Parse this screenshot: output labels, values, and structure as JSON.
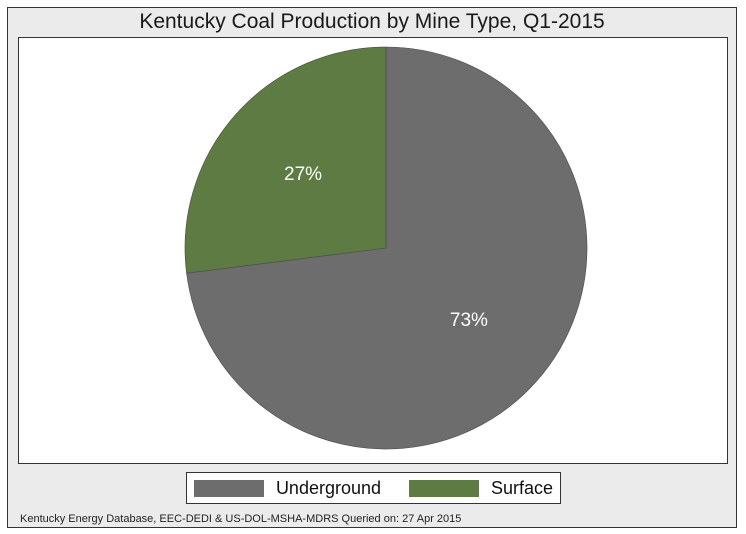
{
  "source_note": "Kentucky Energy Database, EEC-DEDI & US-DOL-MSHA-MDRS Queried on: 27 Apr 2015",
  "chart_data": {
    "type": "pie",
    "title": "Kentucky Coal Production by Mine Type, Q1-2015",
    "legend_position": "bottom",
    "slices": [
      {
        "name": "Underground",
        "value": 73,
        "label": "73%",
        "color": "#6d6d6d"
      },
      {
        "name": "Surface",
        "value": 27,
        "label": "27%",
        "color": "#5e7b43"
      }
    ]
  }
}
